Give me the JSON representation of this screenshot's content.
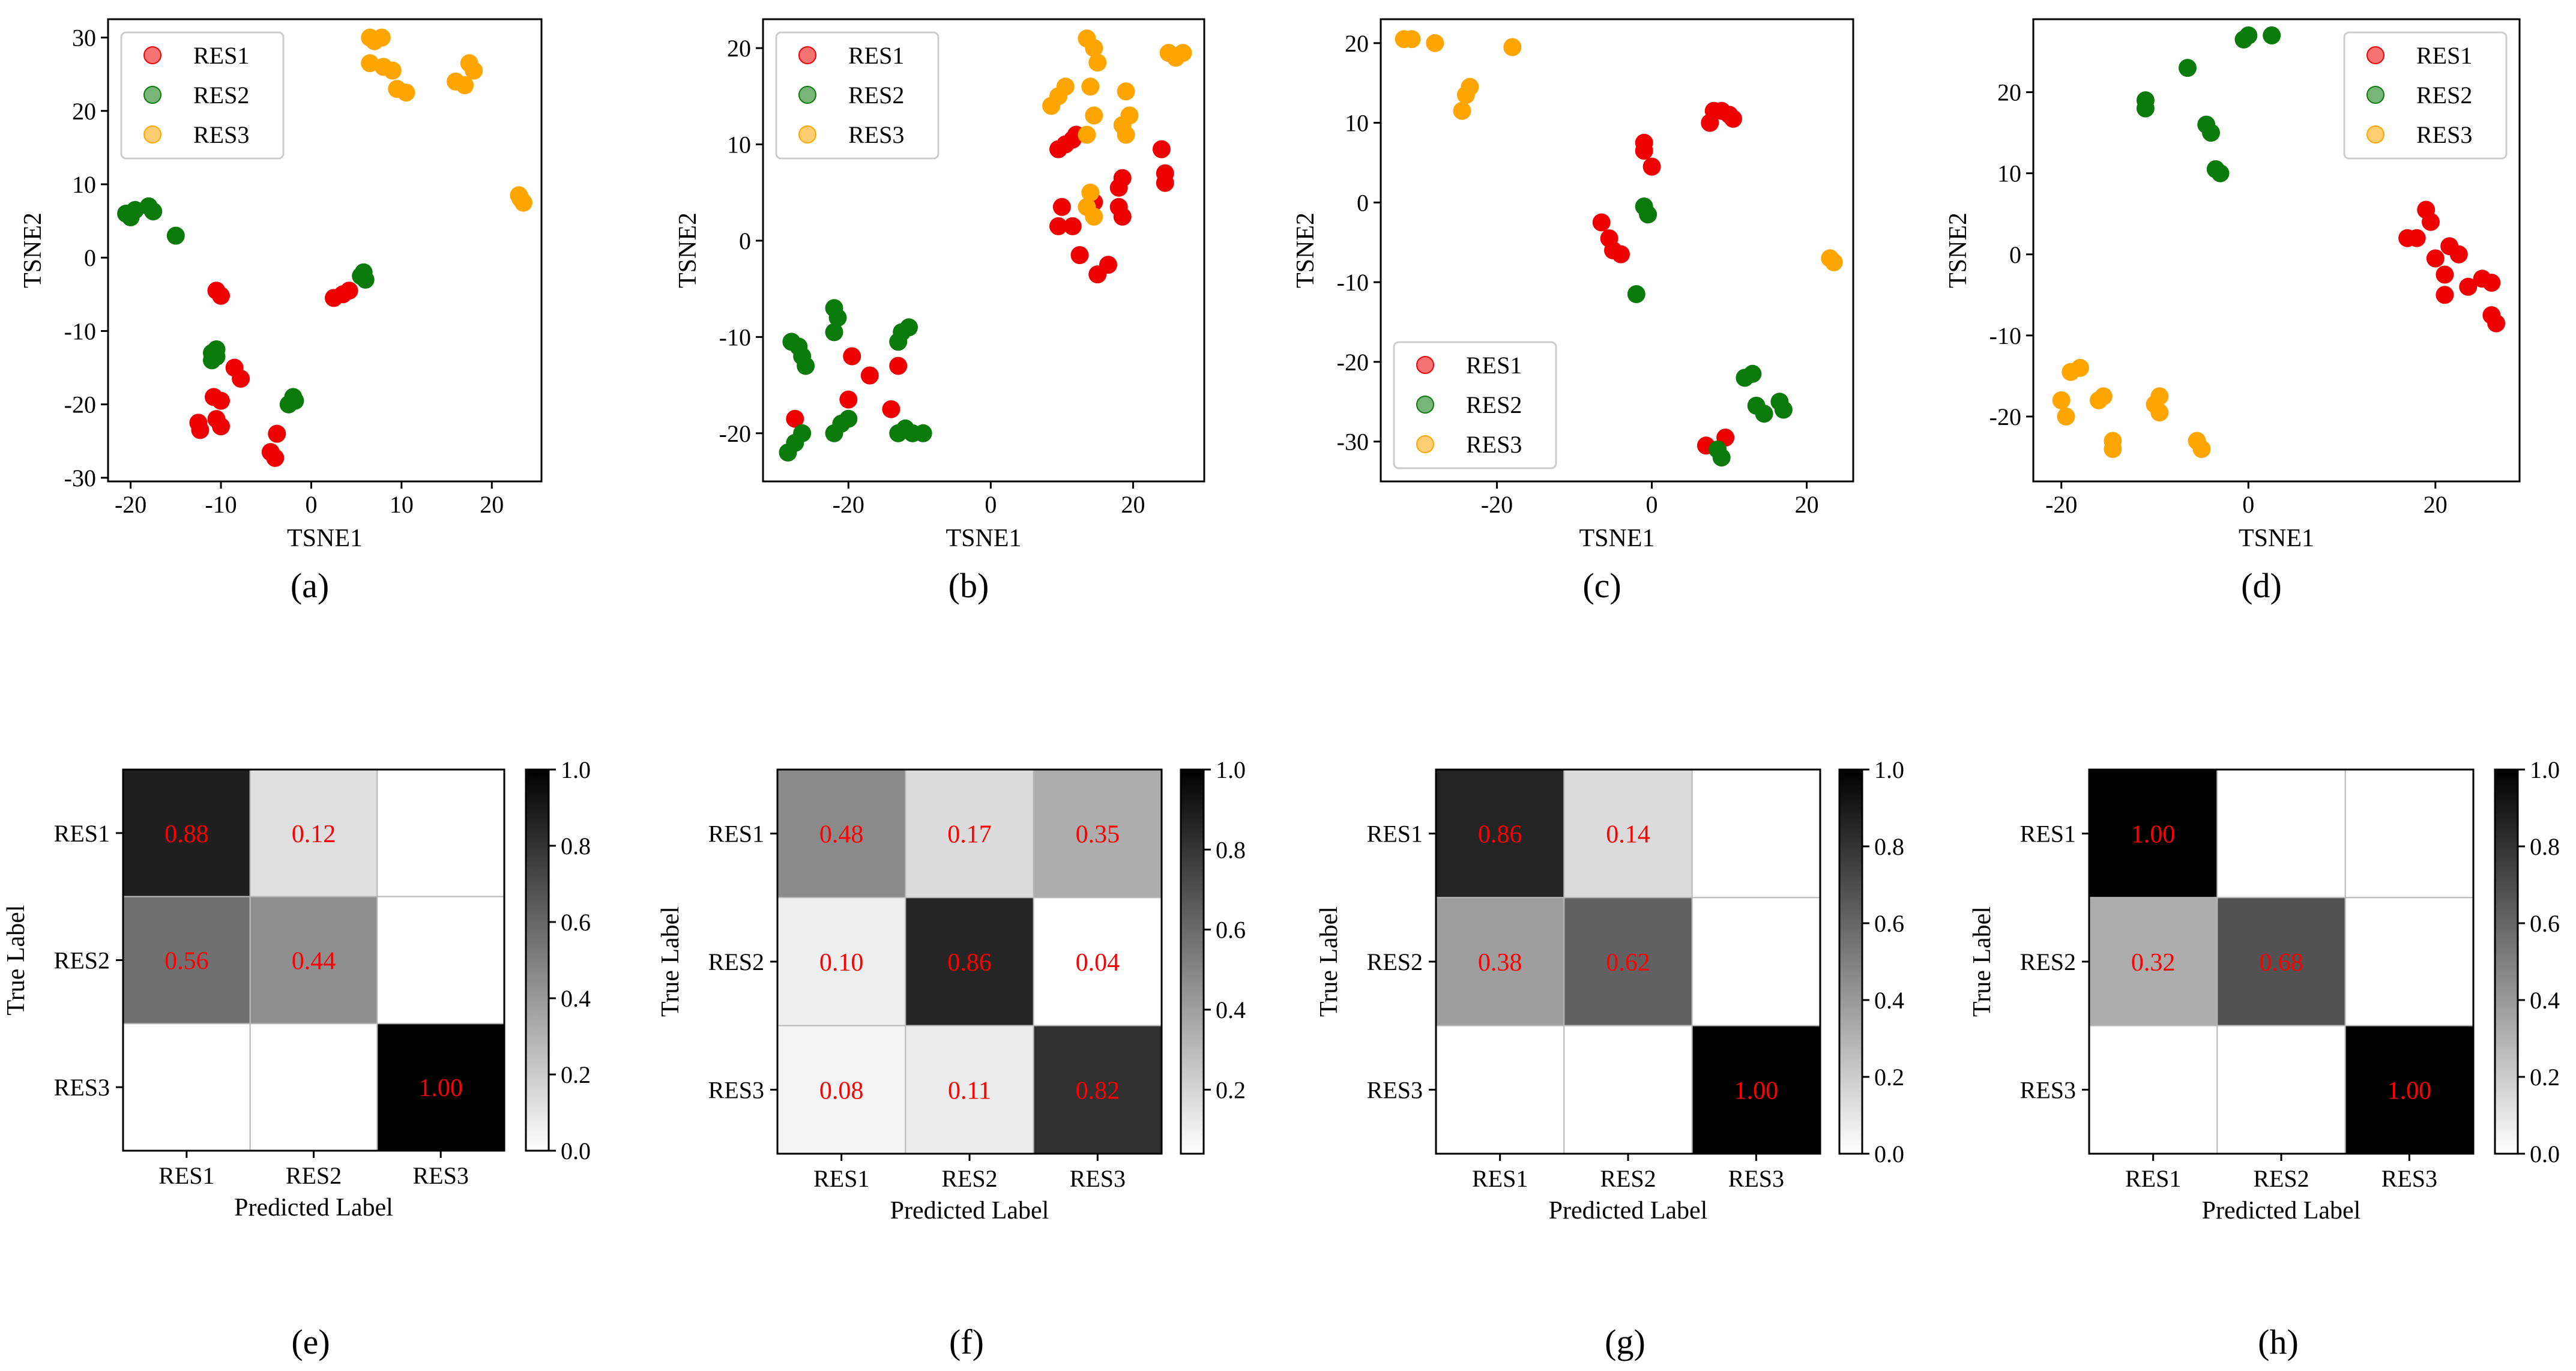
{
  "colors": {
    "RES1": "#ee0000",
    "RES2": "#0a7a0a",
    "RES3": "#ffa500",
    "cell_text": "#ff0000",
    "axis": "#000000"
  },
  "chart_data": [
    {
      "type": "scatter",
      "panel_label": "(a)",
      "xlabel": "TSNE1",
      "ylabel": "TSNE2",
      "xlim": [
        -22.5,
        25.5
      ],
      "ylim": [
        -30.5,
        32.5
      ],
      "xticks": [
        -20,
        -10,
        0,
        10,
        20
      ],
      "yticks": [
        -30,
        -20,
        -10,
        0,
        10,
        20,
        30
      ],
      "legend": {
        "position": "top-left",
        "entries": [
          "RES1",
          "RES2",
          "RES3"
        ]
      },
      "series": [
        {
          "name": "RES1",
          "points": [
            [
              -10.5,
              -4.5
            ],
            [
              -10,
              -5.2
            ],
            [
              -10.8,
              -19
            ],
            [
              -10,
              -19.5
            ],
            [
              -10.5,
              -22
            ],
            [
              -10,
              -23
            ],
            [
              -12.5,
              -22.5
            ],
            [
              -12.3,
              -23.5
            ],
            [
              -8.5,
              -15
            ],
            [
              -7.8,
              -16.5
            ],
            [
              -4.5,
              -26.5
            ],
            [
              -4,
              -27.3
            ],
            [
              -3.8,
              -24
            ],
            [
              2.5,
              -5.5
            ],
            [
              3.5,
              -5
            ],
            [
              4.2,
              -4.5
            ]
          ]
        },
        {
          "name": "RES2",
          "points": [
            [
              -20.5,
              6
            ],
            [
              -20,
              5.5
            ],
            [
              -19.5,
              6.5
            ],
            [
              -18,
              7
            ],
            [
              -17.5,
              6.3
            ],
            [
              -15,
              3
            ],
            [
              -11,
              -13
            ],
            [
              -10.5,
              -13.5
            ],
            [
              -11,
              -14
            ],
            [
              -10.5,
              -12.5
            ],
            [
              -2,
              -19
            ],
            [
              -2.5,
              -20
            ],
            [
              -1.8,
              -19.5
            ],
            [
              5.5,
              -2.5
            ],
            [
              6,
              -3
            ],
            [
              5.8,
              -2
            ]
          ]
        },
        {
          "name": "RES3",
          "points": [
            [
              6.5,
              30
            ],
            [
              7,
              29.5
            ],
            [
              7.8,
              30
            ],
            [
              6.5,
              26.5
            ],
            [
              8,
              26
            ],
            [
              9,
              25.5
            ],
            [
              9.5,
              23
            ],
            [
              10.5,
              22.5
            ],
            [
              16,
              24
            ],
            [
              17,
              23.5
            ],
            [
              17.5,
              26.5
            ],
            [
              18,
              25.5
            ],
            [
              23,
              8.5
            ],
            [
              23.5,
              7.5
            ],
            [
              23.2,
              8
            ]
          ]
        }
      ]
    },
    {
      "type": "scatter",
      "panel_label": "(b)",
      "xlabel": "TSNE1",
      "ylabel": "TSNE2",
      "xlim": [
        -32,
        30
      ],
      "ylim": [
        -25,
        23
      ],
      "xticks": [
        -20,
        0,
        20
      ],
      "yticks": [
        -20,
        -10,
        0,
        10,
        20
      ],
      "legend": {
        "position": "top-left",
        "entries": [
          "RES1",
          "RES2",
          "RES3"
        ]
      },
      "series": [
        {
          "name": "RES1",
          "points": [
            [
              9.5,
              9.5
            ],
            [
              10.5,
              10
            ],
            [
              11.5,
              10.5
            ],
            [
              12,
              11
            ],
            [
              10,
              3.5
            ],
            [
              9.5,
              1.5
            ],
            [
              11.5,
              1.5
            ],
            [
              12.5,
              -1.5
            ],
            [
              14.5,
              4
            ],
            [
              15,
              -3.5
            ],
            [
              16.5,
              -2.5
            ],
            [
              18,
              5.5
            ],
            [
              18.5,
              6.5
            ],
            [
              18,
              3.5
            ],
            [
              18.5,
              2.5
            ],
            [
              24,
              9.5
            ],
            [
              24.5,
              7
            ],
            [
              24.5,
              6
            ],
            [
              -19.5,
              -12
            ],
            [
              -17,
              -14
            ],
            [
              -13,
              -13
            ],
            [
              -20,
              -16.5
            ],
            [
              -27.5,
              -18.5
            ],
            [
              -14,
              -17.5
            ]
          ]
        },
        {
          "name": "RES2",
          "points": [
            [
              -28,
              -10.5
            ],
            [
              -27,
              -11
            ],
            [
              -26.5,
              -12
            ],
            [
              -26,
              -13
            ],
            [
              -22,
              -7
            ],
            [
              -21.5,
              -8
            ],
            [
              -22,
              -9.5
            ],
            [
              -12.5,
              -9.5
            ],
            [
              -13,
              -10.5
            ],
            [
              -11.5,
              -9
            ],
            [
              -28.5,
              -22
            ],
            [
              -27.5,
              -21
            ],
            [
              -26.5,
              -20
            ],
            [
              -22,
              -20
            ],
            [
              -21,
              -19
            ],
            [
              -20,
              -18.5
            ],
            [
              -13,
              -20
            ],
            [
              -12,
              -19.5
            ],
            [
              -11,
              -20
            ],
            [
              -9.5,
              -20
            ]
          ]
        },
        {
          "name": "RES3",
          "points": [
            [
              8.5,
              14
            ],
            [
              9.5,
              15
            ],
            [
              10.5,
              16
            ],
            [
              13.5,
              21
            ],
            [
              14.5,
              20
            ],
            [
              15,
              18.5
            ],
            [
              14,
              16
            ],
            [
              14.5,
              13
            ],
            [
              13.5,
              11
            ],
            [
              14,
              5
            ],
            [
              13.5,
              3.5
            ],
            [
              14.5,
              2.5
            ],
            [
              19,
              15.5
            ],
            [
              19.5,
              13
            ],
            [
              19,
              11
            ],
            [
              18.5,
              12
            ],
            [
              25,
              19.5
            ],
            [
              26,
              19
            ],
            [
              27,
              19.5
            ]
          ]
        }
      ]
    },
    {
      "type": "scatter",
      "panel_label": "(c)",
      "xlabel": "TSNE1",
      "ylabel": "TSNE2",
      "xlim": [
        -35,
        26
      ],
      "ylim": [
        -35,
        23
      ],
      "xticks": [
        -20,
        0,
        20
      ],
      "yticks": [
        -30,
        -20,
        -10,
        0,
        10,
        20
      ],
      "legend": {
        "position": "bottom-left",
        "entries": [
          "RES1",
          "RES2",
          "RES3"
        ]
      },
      "series": [
        {
          "name": "RES1",
          "points": [
            [
              -6.5,
              -2.5
            ],
            [
              -5.5,
              -4.5
            ],
            [
              -5,
              -6
            ],
            [
              -4,
              -6.5
            ],
            [
              -1,
              7.5
            ],
            [
              -1,
              6.5
            ],
            [
              0,
              4.5
            ],
            [
              7.5,
              10
            ],
            [
              8,
              11.5
            ],
            [
              9,
              11.5
            ],
            [
              10,
              11
            ],
            [
              10.5,
              10.5
            ],
            [
              7,
              -30.5
            ],
            [
              9.5,
              -29.5
            ]
          ]
        },
        {
          "name": "RES2",
          "points": [
            [
              -1,
              -0.5
            ],
            [
              -0.5,
              -1.5
            ],
            [
              -2,
              -11.5
            ],
            [
              12,
              -22
            ],
            [
              13,
              -21.5
            ],
            [
              13.5,
              -25.5
            ],
            [
              14.5,
              -26.5
            ],
            [
              16.5,
              -25
            ],
            [
              17,
              -26
            ],
            [
              9,
              -32
            ],
            [
              8.5,
              -31
            ]
          ]
        },
        {
          "name": "RES3",
          "points": [
            [
              -32,
              20.5
            ],
            [
              -31,
              20.5
            ],
            [
              -28,
              20
            ],
            [
              -24,
              13.5
            ],
            [
              -23.5,
              14.5
            ],
            [
              -24.5,
              11.5
            ],
            [
              -18,
              19.5
            ],
            [
              23,
              -7
            ],
            [
              23.5,
              -7.5
            ]
          ]
        }
      ]
    },
    {
      "type": "scatter",
      "panel_label": "(d)",
      "xlabel": "TSNE1",
      "ylabel": "TSNE2",
      "xlim": [
        -23,
        29
      ],
      "ylim": [
        -28,
        29
      ],
      "xticks": [
        -20,
        0,
        20
      ],
      "yticks": [
        -20,
        -10,
        0,
        10,
        20
      ],
      "legend": {
        "position": "top-right",
        "entries": [
          "RES1",
          "RES2",
          "RES3"
        ]
      },
      "series": [
        {
          "name": "RES1",
          "points": [
            [
              17,
              2
            ],
            [
              18,
              2
            ],
            [
              19,
              5.5
            ],
            [
              19.5,
              4
            ],
            [
              20,
              -0.5
            ],
            [
              21,
              -2.5
            ],
            [
              21,
              -5
            ],
            [
              21.5,
              1
            ],
            [
              22.5,
              0
            ],
            [
              23.5,
              -4
            ],
            [
              25,
              -3
            ],
            [
              26,
              -3.5
            ],
            [
              26,
              -7.5
            ],
            [
              26.5,
              -8.5
            ]
          ]
        },
        {
          "name": "RES2",
          "points": [
            [
              -11,
              19
            ],
            [
              -11,
              18
            ],
            [
              -6.5,
              23
            ],
            [
              -4.5,
              16
            ],
            [
              -4,
              15
            ],
            [
              -3.5,
              10.5
            ],
            [
              -3,
              10
            ],
            [
              -0.5,
              26.5
            ],
            [
              0,
              27
            ],
            [
              2.5,
              27
            ]
          ]
        },
        {
          "name": "RES3",
          "points": [
            [
              -20,
              -18
            ],
            [
              -19.5,
              -20
            ],
            [
              -19,
              -14.5
            ],
            [
              -18,
              -14
            ],
            [
              -16,
              -18
            ],
            [
              -15.5,
              -17.5
            ],
            [
              -14.5,
              -23
            ],
            [
              -14.5,
              -24
            ],
            [
              -10,
              -18.5
            ],
            [
              -9.5,
              -19.5
            ],
            [
              -9.5,
              -17.5
            ],
            [
              -5,
              -24
            ],
            [
              -5.5,
              -23
            ]
          ]
        }
      ]
    },
    {
      "type": "heatmap",
      "panel_label": "(e)",
      "xlabel": "Predicted Label",
      "ylabel": "True Label",
      "categories": [
        "RES1",
        "RES2",
        "RES3"
      ],
      "matrix": [
        [
          0.88,
          0.12,
          0.0
        ],
        [
          0.56,
          0.44,
          0.0
        ],
        [
          0.0,
          0.0,
          1.0
        ]
      ],
      "labels": [
        [
          "0.88",
          "0.12",
          ""
        ],
        [
          "0.56",
          "0.44",
          ""
        ],
        [
          "",
          "",
          "1.00"
        ]
      ],
      "colorbar": {
        "range": [
          0.0,
          1.0
        ],
        "ticks": [
          "0.0",
          "0.2",
          "0.4",
          "0.6",
          "0.8",
          "1.0"
        ]
      }
    },
    {
      "type": "heatmap",
      "panel_label": "(f)",
      "xlabel": "Predicted Label",
      "ylabel": "True Label",
      "categories": [
        "RES1",
        "RES2",
        "RES3"
      ],
      "matrix": [
        [
          0.48,
          0.17,
          0.35
        ],
        [
          0.1,
          0.86,
          0.04
        ],
        [
          0.08,
          0.11,
          0.82
        ]
      ],
      "labels": [
        [
          "0.48",
          "0.17",
          "0.35"
        ],
        [
          "0.10",
          "0.86",
          "0.04"
        ],
        [
          "0.08",
          "0.11",
          "0.82"
        ]
      ],
      "colorbar": {
        "range": [
          0.04,
          1.0
        ],
        "ticks": [
          "0.2",
          "0.4",
          "0.6",
          "0.8",
          "1.0"
        ]
      }
    },
    {
      "type": "heatmap",
      "panel_label": "(g)",
      "xlabel": "Predicted Label",
      "ylabel": "True Label",
      "categories": [
        "RES1",
        "RES2",
        "RES3"
      ],
      "matrix": [
        [
          0.86,
          0.14,
          0.0
        ],
        [
          0.38,
          0.62,
          0.0
        ],
        [
          0.0,
          0.0,
          1.0
        ]
      ],
      "labels": [
        [
          "0.86",
          "0.14",
          ""
        ],
        [
          "0.38",
          "0.62",
          ""
        ],
        [
          "",
          "",
          "1.00"
        ]
      ],
      "colorbar": {
        "range": [
          0.0,
          1.0
        ],
        "ticks": [
          "0.0",
          "0.2",
          "0.4",
          "0.6",
          "0.8",
          "1.0"
        ]
      }
    },
    {
      "type": "heatmap",
      "panel_label": "(h)",
      "xlabel": "Predicted Label",
      "ylabel": "True Label",
      "categories": [
        "RES1",
        "RES2",
        "RES3"
      ],
      "matrix": [
        [
          1.0,
          0.0,
          0.0
        ],
        [
          0.32,
          0.68,
          0.0
        ],
        [
          0.0,
          0.0,
          1.0
        ]
      ],
      "labels": [
        [
          "1.00",
          "",
          ""
        ],
        [
          "0.32",
          "0.68",
          ""
        ],
        [
          "",
          "",
          "1.00"
        ]
      ],
      "colorbar": {
        "range": [
          0.0,
          1.0
        ],
        "ticks": [
          "0.0",
          "0.2",
          "0.4",
          "0.6",
          "0.8",
          "1.0"
        ]
      }
    }
  ]
}
